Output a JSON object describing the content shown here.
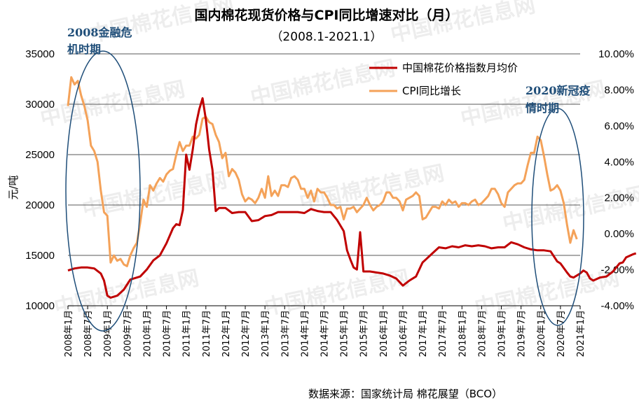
{
  "chart_data": {
    "type": "line",
    "title": "国内棉花现货价格与CPI同比增速对比（月）",
    "subtitle": "（2008.1-2021.1）",
    "ylabel": "元/吨",
    "source": "数据来源：国家统计局 棉花展望（BCO）",
    "watermark": "中国棉花信息网",
    "left_axis": {
      "min": 10000,
      "max": 35000,
      "ticks": [
        "10000",
        "15000",
        "20000",
        "25000",
        "30000",
        "35000"
      ]
    },
    "right_axis": {
      "min": -4,
      "max": 10,
      "ticks": [
        "-4.00%",
        "-2.00%",
        "0.00%",
        "2.00%",
        "4.00%",
        "6.00%",
        "8.00%",
        "10.00%"
      ]
    },
    "x_ticks": [
      "2008年1月",
      "2008年7月",
      "2009年1月",
      "2009年7月",
      "2010年1月",
      "2010年7月",
      "2011年1月",
      "2011年7月",
      "2012年1月",
      "2012年7月",
      "2013年1月",
      "2013年7月",
      "2014年1月",
      "2014年7月",
      "2015年1月",
      "2015年7月",
      "2016年1月",
      "2016年7月",
      "2017年1月",
      "2017年7月",
      "2018年1月",
      "2018年7月",
      "2019年1月",
      "2019年7月",
      "2020年1月",
      "2020年7月",
      "2021年1月"
    ],
    "annotations": [
      {
        "lines": [
          "2008金融危",
          "机时期"
        ]
      },
      {
        "lines": [
          "2020新冠疫",
          "情时期"
        ]
      }
    ],
    "legend_position": "top-right",
    "colors": {
      "cotton": "#c00000",
      "cpi": "#f4a259",
      "ellipse": "#1f4e79"
    },
    "series": [
      {
        "name": "中国棉花价格指数月均价",
        "axis": "left",
        "points": [
          [
            0,
            13500
          ],
          [
            2,
            13700
          ],
          [
            4,
            13800
          ],
          [
            6,
            13800
          ],
          [
            8,
            13700
          ],
          [
            10,
            13200
          ],
          [
            11,
            12500
          ],
          [
            12,
            11000
          ],
          [
            13,
            10800
          ],
          [
            15,
            11000
          ],
          [
            17,
            11600
          ],
          [
            19,
            12600
          ],
          [
            22,
            12900
          ],
          [
            24,
            13600
          ],
          [
            26,
            14500
          ],
          [
            28,
            15000
          ],
          [
            30,
            16200
          ],
          [
            32,
            17700
          ],
          [
            33,
            18100
          ],
          [
            34,
            18000
          ],
          [
            35,
            19500
          ],
          [
            36,
            25000
          ],
          [
            37,
            23500
          ],
          [
            38,
            25500
          ],
          [
            39,
            28000
          ],
          [
            40,
            29500
          ],
          [
            41,
            30600
          ],
          [
            42,
            28500
          ],
          [
            43,
            25500
          ],
          [
            44,
            23500
          ],
          [
            45,
            19400
          ],
          [
            46,
            19700
          ],
          [
            48,
            19700
          ],
          [
            50,
            19200
          ],
          [
            52,
            19300
          ],
          [
            54,
            19300
          ],
          [
            56,
            18400
          ],
          [
            58,
            18500
          ],
          [
            60,
            18900
          ],
          [
            62,
            19000
          ],
          [
            64,
            19300
          ],
          [
            66,
            19300
          ],
          [
            68,
            19300
          ],
          [
            70,
            19300
          ],
          [
            72,
            19200
          ],
          [
            74,
            19600
          ],
          [
            76,
            19400
          ],
          [
            78,
            19300
          ],
          [
            80,
            19300
          ],
          [
            82,
            18500
          ],
          [
            84,
            17400
          ],
          [
            85,
            15500
          ],
          [
            86,
            14600
          ],
          [
            87,
            13800
          ],
          [
            88,
            13600
          ],
          [
            89,
            17300
          ],
          [
            90,
            13400
          ],
          [
            92,
            13400
          ],
          [
            94,
            13300
          ],
          [
            96,
            13200
          ],
          [
            98,
            13000
          ],
          [
            100,
            12700
          ],
          [
            102,
            12000
          ],
          [
            104,
            12500
          ],
          [
            106,
            12900
          ],
          [
            108,
            14300
          ],
          [
            109,
            14600
          ],
          [
            111,
            15200
          ],
          [
            113,
            15800
          ],
          [
            115,
            15700
          ],
          [
            117,
            15900
          ],
          [
            119,
            15800
          ],
          [
            121,
            16000
          ],
          [
            123,
            15900
          ],
          [
            125,
            16000
          ],
          [
            127,
            15900
          ],
          [
            129,
            15700
          ],
          [
            131,
            15800
          ],
          [
            133,
            15800
          ],
          [
            135,
            16300
          ],
          [
            137,
            16100
          ],
          [
            139,
            15800
          ],
          [
            141,
            15600
          ],
          [
            143,
            15500
          ],
          [
            145,
            15500
          ],
          [
            147,
            15400
          ],
          [
            149,
            14400
          ],
          [
            150,
            14200
          ],
          [
            152,
            13300
          ],
          [
            153,
            12900
          ],
          [
            154,
            12800
          ],
          [
            156,
            13200
          ],
          [
            157,
            13500
          ],
          [
            158,
            13300
          ],
          [
            159,
            12700
          ],
          [
            160,
            12500
          ],
          [
            162,
            12800
          ],
          [
            164,
            12900
          ],
          [
            166,
            13400
          ],
          [
            168,
            14200
          ],
          [
            169,
            14300
          ],
          [
            170,
            14800
          ],
          [
            172,
            15100
          ],
          [
            173,
            15200
          ]
        ]
      },
      {
        "name": "CPI同比增长",
        "axis": "right",
        "points": [
          [
            0,
            7.1
          ],
          [
            1,
            8.7
          ],
          [
            2,
            8.3
          ],
          [
            3,
            8.5
          ],
          [
            4,
            7.7
          ],
          [
            5,
            7.1
          ],
          [
            6,
            6.3
          ],
          [
            7,
            4.9
          ],
          [
            8,
            4.6
          ],
          [
            9,
            4.0
          ],
          [
            10,
            2.4
          ],
          [
            11,
            1.2
          ],
          [
            12,
            1.0
          ],
          [
            13,
            -1.6
          ],
          [
            14,
            -1.2
          ],
          [
            15,
            -1.5
          ],
          [
            16,
            -1.4
          ],
          [
            17,
            -1.7
          ],
          [
            18,
            -1.8
          ],
          [
            19,
            -1.2
          ],
          [
            20,
            -0.8
          ],
          [
            21,
            -0.5
          ],
          [
            22,
            0.6
          ],
          [
            23,
            1.9
          ],
          [
            24,
            1.5
          ],
          [
            25,
            2.7
          ],
          [
            26,
            2.4
          ],
          [
            27,
            2.8
          ],
          [
            28,
            3.1
          ],
          [
            29,
            2.9
          ],
          [
            30,
            3.3
          ],
          [
            31,
            3.5
          ],
          [
            32,
            3.6
          ],
          [
            33,
            4.4
          ],
          [
            34,
            5.1
          ],
          [
            35,
            4.6
          ],
          [
            36,
            4.9
          ],
          [
            37,
            4.9
          ],
          [
            38,
            5.4
          ],
          [
            39,
            5.3
          ],
          [
            40,
            5.5
          ],
          [
            41,
            6.4
          ],
          [
            42,
            6.5
          ],
          [
            43,
            6.2
          ],
          [
            44,
            6.1
          ],
          [
            45,
            5.5
          ],
          [
            46,
            5.1
          ],
          [
            47,
            4.2
          ],
          [
            48,
            4.5
          ],
          [
            49,
            3.2
          ],
          [
            50,
            3.6
          ],
          [
            51,
            3.4
          ],
          [
            52,
            3.0
          ],
          [
            53,
            2.2
          ],
          [
            54,
            1.8
          ],
          [
            55,
            2.0
          ],
          [
            56,
            1.9
          ],
          [
            57,
            1.7
          ],
          [
            58,
            2.0
          ],
          [
            59,
            2.5
          ],
          [
            60,
            2.0
          ],
          [
            61,
            3.2
          ],
          [
            62,
            2.1
          ],
          [
            63,
            2.4
          ],
          [
            64,
            2.1
          ],
          [
            65,
            2.7
          ],
          [
            66,
            2.7
          ],
          [
            67,
            2.6
          ],
          [
            68,
            3.1
          ],
          [
            69,
            3.2
          ],
          [
            70,
            3.0
          ],
          [
            71,
            2.5
          ],
          [
            72,
            2.5
          ],
          [
            73,
            2.0
          ],
          [
            74,
            2.4
          ],
          [
            75,
            1.8
          ],
          [
            76,
            2.5
          ],
          [
            77,
            2.3
          ],
          [
            78,
            2.3
          ],
          [
            79,
            2.0
          ],
          [
            80,
            1.6
          ],
          [
            81,
            1.6
          ],
          [
            82,
            1.4
          ],
          [
            83,
            1.5
          ],
          [
            84,
            0.8
          ],
          [
            85,
            1.4
          ],
          [
            86,
            1.4
          ],
          [
            87,
            1.5
          ],
          [
            88,
            1.2
          ],
          [
            89,
            1.4
          ],
          [
            90,
            1.6
          ],
          [
            91,
            2.0
          ],
          [
            92,
            1.6
          ],
          [
            93,
            1.3
          ],
          [
            94,
            1.5
          ],
          [
            95,
            1.6
          ],
          [
            96,
            1.8
          ],
          [
            97,
            2.3
          ],
          [
            98,
            2.3
          ],
          [
            99,
            2.0
          ],
          [
            100,
            2.0
          ],
          [
            101,
            1.8
          ],
          [
            102,
            1.3
          ],
          [
            103,
            1.9
          ],
          [
            104,
            2.0
          ],
          [
            105,
            2.1
          ],
          [
            106,
            2.3
          ],
          [
            107,
            2.1
          ],
          [
            108,
            0.8
          ],
          [
            109,
            0.9
          ],
          [
            110,
            1.2
          ],
          [
            111,
            1.5
          ],
          [
            112,
            1.5
          ],
          [
            113,
            1.4
          ],
          [
            114,
            1.8
          ],
          [
            115,
            1.6
          ],
          [
            116,
            1.9
          ],
          [
            117,
            1.7
          ],
          [
            118,
            1.8
          ],
          [
            119,
            1.5
          ],
          [
            120,
            1.7
          ],
          [
            121,
            1.7
          ],
          [
            122,
            1.6
          ],
          [
            123,
            1.8
          ],
          [
            124,
            1.9
          ],
          [
            125,
            1.6
          ],
          [
            126,
            1.7
          ],
          [
            127,
            1.9
          ],
          [
            128,
            2.1
          ],
          [
            129,
            2.5
          ],
          [
            130,
            2.5
          ],
          [
            131,
            2.2
          ],
          [
            132,
            1.7
          ],
          [
            133,
            1.5
          ],
          [
            134,
            2.3
          ],
          [
            135,
            2.5
          ],
          [
            136,
            2.7
          ],
          [
            137,
            2.8
          ],
          [
            138,
            2.8
          ],
          [
            139,
            3.0
          ],
          [
            140,
            3.8
          ],
          [
            141,
            4.5
          ],
          [
            142,
            4.5
          ],
          [
            143,
            5.4
          ],
          [
            144,
            5.2
          ],
          [
            145,
            4.3
          ],
          [
            146,
            3.3
          ],
          [
            147,
            2.4
          ],
          [
            148,
            2.5
          ],
          [
            149,
            2.7
          ],
          [
            150,
            2.4
          ],
          [
            151,
            1.7
          ],
          [
            152,
            0.5
          ],
          [
            153,
            -0.5
          ],
          [
            154,
            0.2
          ],
          [
            155,
            -0.3
          ]
        ]
      }
    ]
  }
}
